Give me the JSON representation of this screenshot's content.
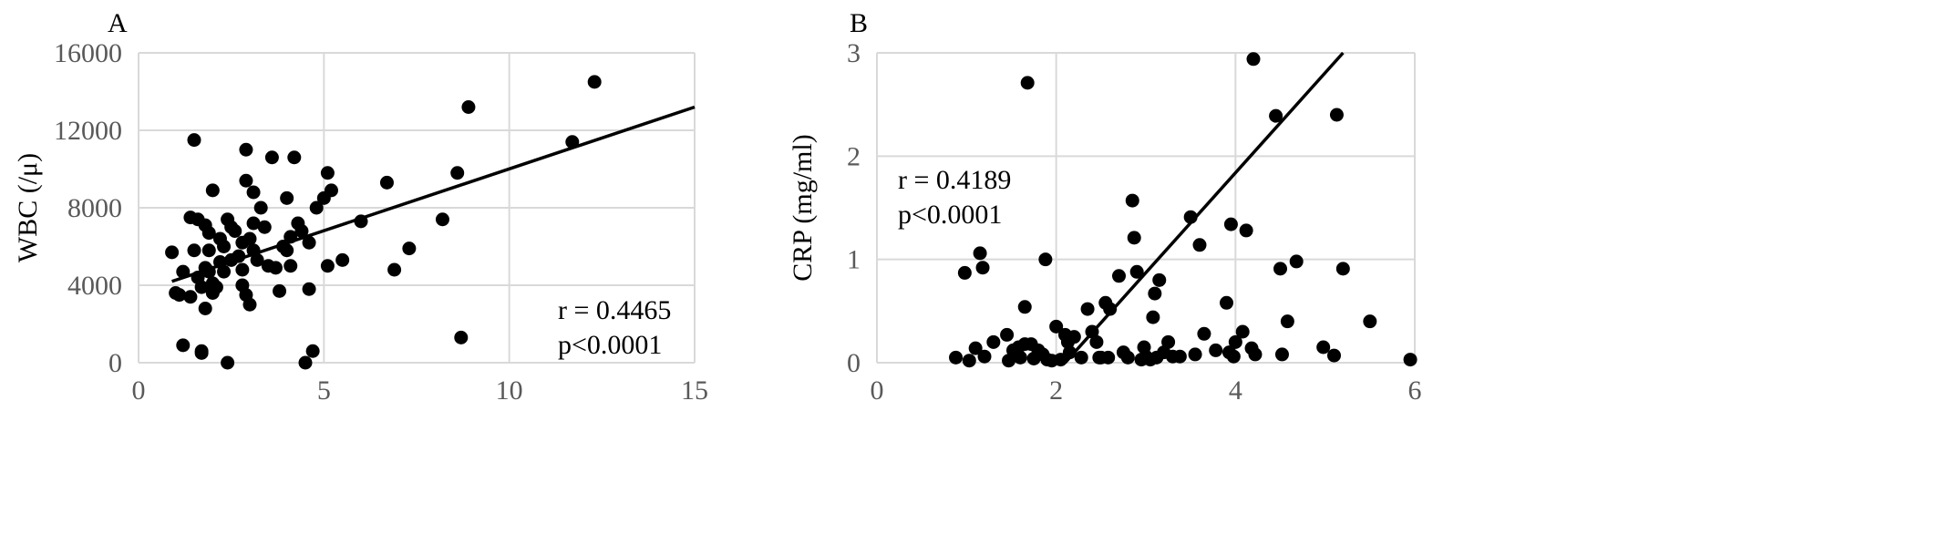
{
  "chart_data": [
    {
      "type": "scatter",
      "panel_label": "A",
      "ylabel": "WBC (/μ)",
      "xlim": [
        0,
        15
      ],
      "ylim": [
        0,
        16000
      ],
      "xticks": [
        "0",
        "5",
        "10",
        "15"
      ],
      "yticks": [
        "0",
        "4000",
        "8000",
        "12000",
        "16000"
      ],
      "grid": "on",
      "annotation": [
        "r =  0.4465",
        "p<0.0001"
      ],
      "trendline": {
        "x": [
          0.9,
          15
        ],
        "y": [
          4200,
          13200
        ]
      },
      "points": [
        [
          0.9,
          5700
        ],
        [
          1.0,
          3600
        ],
        [
          1.1,
          3500
        ],
        [
          1.2,
          4700
        ],
        [
          1.2,
          900
        ],
        [
          1.4,
          7500
        ],
        [
          1.4,
          3400
        ],
        [
          1.5,
          11500
        ],
        [
          1.5,
          5800
        ],
        [
          1.6,
          7400
        ],
        [
          1.6,
          4400
        ],
        [
          1.7,
          3900
        ],
        [
          1.7,
          600
        ],
        [
          1.7,
          500
        ],
        [
          1.8,
          4900
        ],
        [
          1.8,
          7100
        ],
        [
          1.8,
          2800
        ],
        [
          1.9,
          6700
        ],
        [
          1.9,
          5800
        ],
        [
          1.9,
          4700
        ],
        [
          2.0,
          8900
        ],
        [
          2.0,
          4100
        ],
        [
          2.0,
          3600
        ],
        [
          2.1,
          3900
        ],
        [
          2.2,
          6400
        ],
        [
          2.2,
          5200
        ],
        [
          2.3,
          6000
        ],
        [
          2.3,
          4700
        ],
        [
          2.4,
          0
        ],
        [
          2.4,
          7400
        ],
        [
          2.5,
          7000
        ],
        [
          2.5,
          5300
        ],
        [
          2.6,
          6800
        ],
        [
          2.7,
          5500
        ],
        [
          2.8,
          6200
        ],
        [
          2.8,
          4800
        ],
        [
          2.8,
          4000
        ],
        [
          2.9,
          11000
        ],
        [
          2.9,
          9400
        ],
        [
          2.9,
          3500
        ],
        [
          3.0,
          6400
        ],
        [
          3.0,
          3000
        ],
        [
          3.1,
          8800
        ],
        [
          3.1,
          7200
        ],
        [
          3.1,
          5800
        ],
        [
          3.2,
          5300
        ],
        [
          3.3,
          8000
        ],
        [
          3.4,
          7000
        ],
        [
          3.5,
          5000
        ],
        [
          3.6,
          10600
        ],
        [
          3.7,
          4900
        ],
        [
          3.8,
          3700
        ],
        [
          3.9,
          6000
        ],
        [
          4.0,
          8500
        ],
        [
          4.0,
          5800
        ],
        [
          4.1,
          6500
        ],
        [
          4.1,
          5000
        ],
        [
          4.2,
          10600
        ],
        [
          4.3,
          7200
        ],
        [
          4.4,
          6800
        ],
        [
          4.5,
          0
        ],
        [
          4.6,
          6200
        ],
        [
          4.6,
          3800
        ],
        [
          4.7,
          600
        ],
        [
          4.8,
          8000
        ],
        [
          5.0,
          8500
        ],
        [
          5.1,
          9800
        ],
        [
          5.1,
          5000
        ],
        [
          5.2,
          8900
        ],
        [
          5.5,
          5300
        ],
        [
          6.0,
          7300
        ],
        [
          6.7,
          9300
        ],
        [
          6.9,
          4800
        ],
        [
          7.3,
          5900
        ],
        [
          8.2,
          7400
        ],
        [
          8.6,
          9800
        ],
        [
          8.7,
          1300
        ],
        [
          8.9,
          13200
        ],
        [
          11.7,
          11400
        ],
        [
          12.3,
          14500
        ]
      ]
    },
    {
      "type": "scatter",
      "panel_label": "B",
      "ylabel": "CRP (mg/ml)",
      "xlim": [
        0,
        6
      ],
      "ylim": [
        0,
        3
      ],
      "xticks": [
        "0",
        "2",
        "4",
        "6"
      ],
      "yticks": [
        "0",
        "1",
        "2",
        "3"
      ],
      "grid": "on",
      "annotation": [
        "r =  0.4189",
        "p<0.0001"
      ],
      "trendline": {
        "x": [
          2.1,
          5.2
        ],
        "y": [
          0,
          3
        ]
      },
      "points": [
        [
          0.88,
          0.05
        ],
        [
          0.98,
          0.87
        ],
        [
          1.03,
          0.02
        ],
        [
          1.1,
          0.14
        ],
        [
          1.15,
          1.06
        ],
        [
          1.18,
          0.92
        ],
        [
          1.2,
          0.06
        ],
        [
          1.3,
          0.2
        ],
        [
          1.45,
          0.27
        ],
        [
          1.47,
          0.02
        ],
        [
          1.52,
          0.12
        ],
        [
          1.58,
          0.15
        ],
        [
          1.6,
          0.05
        ],
        [
          1.65,
          0.18
        ],
        [
          1.65,
          0.54
        ],
        [
          1.68,
          2.71
        ],
        [
          1.72,
          0.18
        ],
        [
          1.75,
          0.04
        ],
        [
          1.8,
          0.12
        ],
        [
          1.85,
          0.08
        ],
        [
          1.88,
          1.0
        ],
        [
          1.9,
          0.03
        ],
        [
          1.95,
          0.02
        ],
        [
          2.0,
          0.35
        ],
        [
          2.05,
          0.03
        ],
        [
          2.1,
          0.27
        ],
        [
          2.13,
          0.2
        ],
        [
          2.15,
          0.1
        ],
        [
          2.2,
          0.25
        ],
        [
          2.28,
          0.05
        ],
        [
          2.35,
          0.52
        ],
        [
          2.4,
          0.3
        ],
        [
          2.45,
          0.2
        ],
        [
          2.48,
          0.05
        ],
        [
          2.5,
          0.05
        ],
        [
          2.55,
          0.58
        ],
        [
          2.58,
          0.05
        ],
        [
          2.6,
          0.52
        ],
        [
          2.7,
          0.84
        ],
        [
          2.75,
          0.1
        ],
        [
          2.8,
          0.05
        ],
        [
          2.85,
          1.57
        ],
        [
          2.87,
          1.21
        ],
        [
          2.9,
          0.88
        ],
        [
          2.95,
          0.03
        ],
        [
          2.98,
          0.15
        ],
        [
          3.0,
          0.06
        ],
        [
          3.05,
          0.03
        ],
        [
          3.08,
          0.44
        ],
        [
          3.1,
          0.67
        ],
        [
          3.12,
          0.05
        ],
        [
          3.15,
          0.8
        ],
        [
          3.2,
          0.1
        ],
        [
          3.25,
          0.2
        ],
        [
          3.3,
          0.06
        ],
        [
          3.38,
          0.06
        ],
        [
          3.5,
          1.41
        ],
        [
          3.55,
          0.08
        ],
        [
          3.6,
          1.14
        ],
        [
          3.65,
          0.28
        ],
        [
          3.78,
          0.12
        ],
        [
          3.9,
          0.58
        ],
        [
          3.93,
          0.1
        ],
        [
          3.95,
          1.34
        ],
        [
          3.98,
          0.06
        ],
        [
          4.0,
          0.2
        ],
        [
          4.08,
          0.3
        ],
        [
          4.12,
          1.28
        ],
        [
          4.18,
          0.14
        ],
        [
          4.2,
          2.94
        ],
        [
          4.22,
          0.08
        ],
        [
          4.45,
          2.39
        ],
        [
          4.5,
          0.91
        ],
        [
          4.52,
          0.08
        ],
        [
          4.58,
          0.4
        ],
        [
          4.68,
          0.98
        ],
        [
          4.98,
          0.15
        ],
        [
          5.1,
          0.07
        ],
        [
          5.13,
          2.4
        ],
        [
          5.2,
          0.91
        ],
        [
          5.5,
          0.4
        ],
        [
          5.95,
          0.03
        ]
      ]
    }
  ]
}
